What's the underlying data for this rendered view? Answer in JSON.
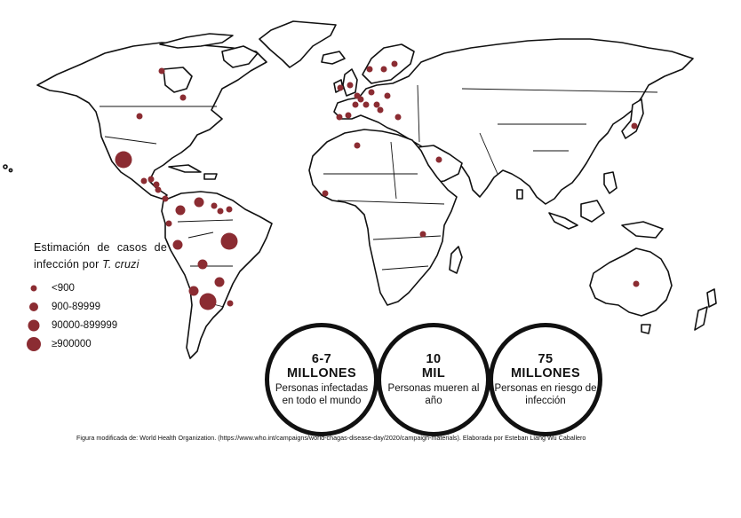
{
  "legend": {
    "title": "Estimación de casos de infección por",
    "title_species": "T. cruzi",
    "items": [
      {
        "label": "<900",
        "size": 1
      },
      {
        "label": "900-89999",
        "size": 2
      },
      {
        "label": "90000-899999",
        "size": 3
      },
      {
        "label": "≥900000",
        "size": 4
      }
    ]
  },
  "stats": [
    {
      "big_line1": "6-7",
      "big_line2": "MILLONES",
      "small": "Personas infectadas en todo el mundo"
    },
    {
      "big_line1": "10",
      "big_line2": "MIL",
      "small": "Personas mueren al año"
    },
    {
      "big_line1": "75",
      "big_line2": "MILLONES",
      "small": "Personas en riesgo de infección"
    }
  ],
  "caption": "Figura modificada de: World Health Organization. (https://www.who.int/campaigns/world-chagas-disease-day/2020/campaign-materials). Elaborada por Esteban Liang Wu Caballero",
  "colors": {
    "marker": "#8b2c32",
    "outline": "#111111"
  },
  "markers": [
    {
      "place": "Alaska",
      "size": 1
    },
    {
      "place": "United States",
      "size": 1
    },
    {
      "place": "Mexico",
      "size": 4
    },
    {
      "place": "Guatemala",
      "size": 1
    },
    {
      "place": "Honduras",
      "size": 1
    },
    {
      "place": "Nicaragua",
      "size": 1
    },
    {
      "place": "Costa Rica",
      "size": 1
    },
    {
      "place": "Panama",
      "size": 1
    },
    {
      "place": "Colombia",
      "size": 2
    },
    {
      "place": "Venezuela",
      "size": 2
    },
    {
      "place": "Guyana",
      "size": 1
    },
    {
      "place": "Suriname",
      "size": 1
    },
    {
      "place": "French Guiana",
      "size": 1
    },
    {
      "place": "Ecuador",
      "size": 1
    },
    {
      "place": "Peru",
      "size": 2
    },
    {
      "place": "Brazil",
      "size": 4
    },
    {
      "place": "Bolivia",
      "size": 2
    },
    {
      "place": "Paraguay",
      "size": 2
    },
    {
      "place": "Chile",
      "size": 2
    },
    {
      "place": "Argentina",
      "size": 4
    },
    {
      "place": "Uruguay",
      "size": 1
    },
    {
      "place": "Canada",
      "size": 1
    },
    {
      "place": "Ireland",
      "size": 1
    },
    {
      "place": "United Kingdom",
      "size": 1
    },
    {
      "place": "Norway",
      "size": 1
    },
    {
      "place": "Sweden",
      "size": 1
    },
    {
      "place": "Finland",
      "size": 1
    },
    {
      "place": "Netherlands",
      "size": 1
    },
    {
      "place": "Belgium",
      "size": 1
    },
    {
      "place": "Germany",
      "size": 1
    },
    {
      "place": "Poland",
      "size": 1
    },
    {
      "place": "France",
      "size": 1
    },
    {
      "place": "Switzerland",
      "size": 1
    },
    {
      "place": "Austria",
      "size": 1
    },
    {
      "place": "Italy",
      "size": 1
    },
    {
      "place": "Spain",
      "size": 1
    },
    {
      "place": "Portugal",
      "size": 1
    },
    {
      "place": "Greece",
      "size": 1
    },
    {
      "place": "Algeria",
      "size": 1
    },
    {
      "place": "Saudi Arabia",
      "size": 1
    },
    {
      "place": "Guinea",
      "size": 1
    },
    {
      "place": "Tanzania",
      "size": 1
    },
    {
      "place": "Japan",
      "size": 1
    },
    {
      "place": "Australia",
      "size": 1
    }
  ]
}
